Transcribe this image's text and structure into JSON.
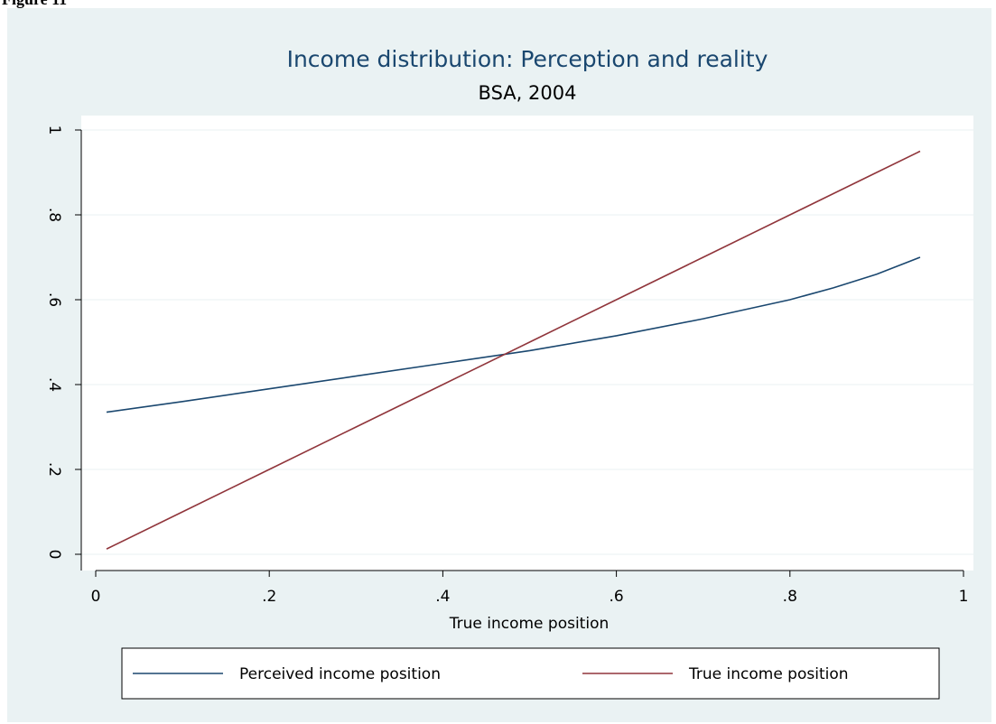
{
  "figure_label": "Figure 11",
  "chart_data": {
    "type": "line",
    "title": "Income distribution: Perception and reality",
    "subtitle": "BSA, 2004",
    "x_label": "True income position",
    "x": [
      0.0125,
      0.1,
      0.2,
      0.3,
      0.4,
      0.5,
      0.6,
      0.7,
      0.8,
      0.85,
      0.9,
      0.95
    ],
    "series": [
      {
        "name": "Perceived income position",
        "color": "#1a476f",
        "values": [
          0.335,
          0.36,
          0.39,
          0.42,
          0.45,
          0.48,
          0.515,
          0.555,
          0.6,
          0.628,
          0.66,
          0.7
        ]
      },
      {
        "name": "True income position",
        "color": "#90353b",
        "values": [
          0.0125,
          0.1,
          0.2,
          0.3,
          0.4,
          0.5,
          0.6,
          0.7,
          0.8,
          0.85,
          0.9,
          0.95
        ]
      }
    ],
    "xlim": [
      0,
      1
    ],
    "xticks": [
      0,
      {
        "value": 0.2,
        "label": ".2"
      },
      {
        "value": 0.4,
        "label": ".4"
      },
      {
        "value": 0.6,
        "label": ".6"
      },
      {
        "value": 0.8,
        "label": ".8"
      },
      1
    ],
    "ylim": [
      0,
      1
    ],
    "yticks": [
      0,
      {
        "value": 0.2,
        "label": ".2"
      },
      {
        "value": 0.4,
        "label": ".4"
      },
      {
        "value": 0.6,
        "label": ".6"
      },
      {
        "value": 0.8,
        "label": ".8"
      },
      1
    ],
    "grid": true,
    "legend": "bottom"
  }
}
